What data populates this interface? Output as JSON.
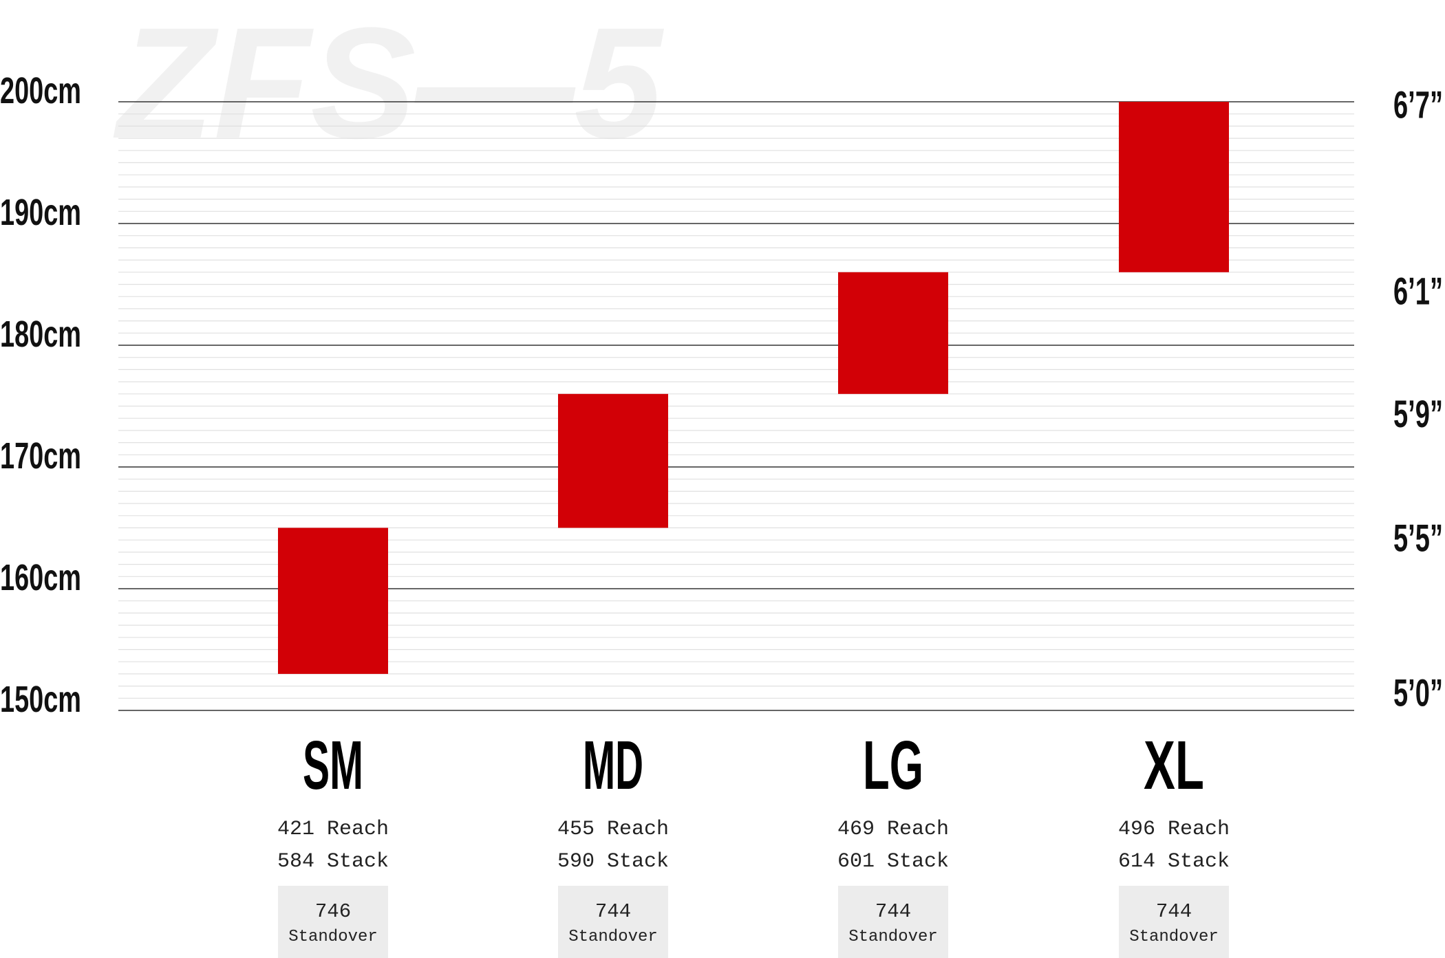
{
  "watermark": "ZFS—5",
  "colors": {
    "bar": "#d20006",
    "major_grid": "#333333",
    "minor_grid": "#e0e0e0",
    "standover_box": "#ececec"
  },
  "chart_data": {
    "type": "bar",
    "subtype": "floating-range",
    "categories": [
      "SM",
      "MD",
      "LG",
      "XL"
    ],
    "series": [
      {
        "ranges": [
          [
            153,
            165
          ],
          [
            165,
            176
          ],
          [
            176,
            186
          ],
          [
            186,
            200
          ]
        ]
      }
    ],
    "ylim": [
      150,
      200
    ],
    "yticks_left": [
      {
        "value": 200,
        "label": "200cm"
      },
      {
        "value": 190,
        "label": "190cm"
      },
      {
        "value": 180,
        "label": "180cm"
      },
      {
        "value": 170,
        "label": "170cm"
      },
      {
        "value": 160,
        "label": "160cm"
      },
      {
        "value": 150,
        "label": "150cm"
      }
    ],
    "yticks_right": [
      {
        "value": 200.7,
        "label": "6’7”"
      },
      {
        "value": 185.4,
        "label": "6’1”"
      },
      {
        "value": 175.3,
        "label": "5’9”"
      },
      {
        "value": 165.1,
        "label": "5’5”"
      },
      {
        "value": 152.4,
        "label": "5’0”"
      }
    ],
    "minor_grid_step": 1,
    "grid": true
  },
  "sizes": [
    {
      "label": "SM",
      "reach": "421",
      "reach_label": "Reach",
      "stack": "584",
      "stack_label": "Stack",
      "standover": "746",
      "standover_label": "Standover"
    },
    {
      "label": "MD",
      "reach": "455",
      "reach_label": "Reach",
      "stack": "590",
      "stack_label": "Stack",
      "standover": "744",
      "standover_label": "Standover"
    },
    {
      "label": "LG",
      "reach": "469",
      "reach_label": "Reach",
      "stack": "601",
      "stack_label": "Stack",
      "standover": "744",
      "standover_label": "Standover"
    },
    {
      "label": "XL",
      "reach": "496",
      "reach_label": "Reach",
      "stack": "614",
      "stack_label": "Stack",
      "standover": "744",
      "standover_label": "Standover"
    }
  ]
}
